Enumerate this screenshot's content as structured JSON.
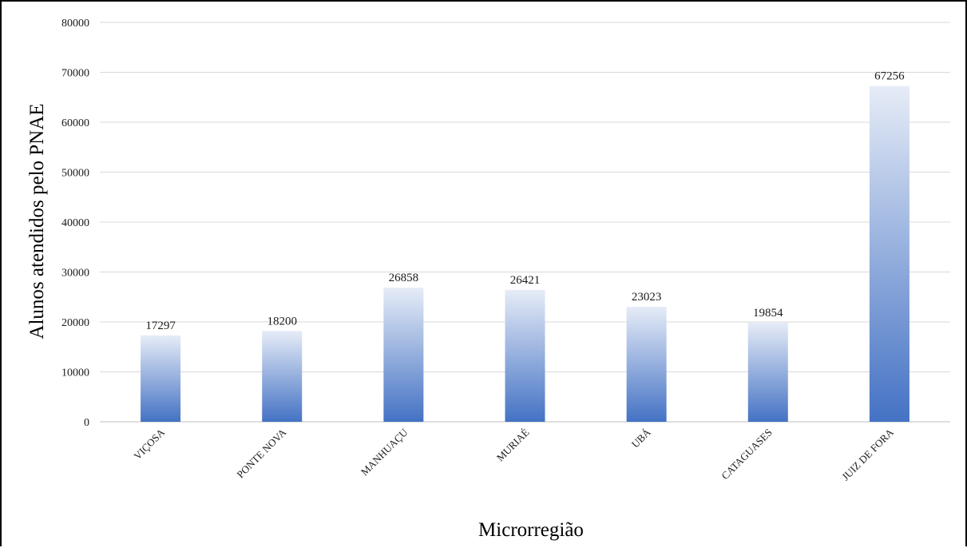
{
  "chart_data": {
    "type": "bar",
    "xlabel": "Microrregião",
    "ylabel": "Alunos atendidos pelo PNAE",
    "ylim": [
      0,
      80000
    ],
    "yticks": [
      0,
      10000,
      20000,
      30000,
      40000,
      50000,
      60000,
      70000,
      80000
    ],
    "categories": [
      "VIÇOSA",
      "PONTE NOVA",
      "MANHUAÇU",
      "MURIAÉ",
      "UBÁ",
      "CATAGUASES",
      "JUIZ DE FORA"
    ],
    "values": [
      17297,
      18200,
      26858,
      26421,
      23023,
      19854,
      67256
    ],
    "data_labels": [
      "17297",
      "18200",
      "26858",
      "26421",
      "23023",
      "19854",
      "67256"
    ],
    "grid": true,
    "legend": "none",
    "colors": {
      "bar_top": "#e6ecf7",
      "bar_bottom": "#4472c4",
      "grid": "#d9d9d9",
      "axis": "#bfbfbf"
    }
  }
}
